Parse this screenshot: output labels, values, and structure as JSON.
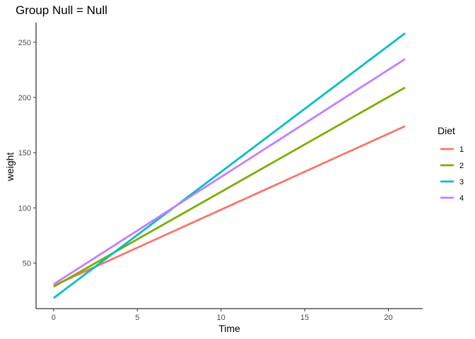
{
  "chart_data": {
    "type": "line",
    "title": "Group Null  = Null",
    "xlabel": "Time",
    "ylabel": "weight",
    "xlim": [
      -1.05,
      22.05
    ],
    "ylim": [
      8.7,
      267.8
    ],
    "x_ticks": [
      0,
      5,
      10,
      15,
      20
    ],
    "y_ticks": [
      50,
      100,
      150,
      200,
      250
    ],
    "grid": false,
    "legend_title": "Diet",
    "legend_position": "right",
    "x": [
      0,
      21
    ],
    "series": [
      {
        "name": "1",
        "color": "#F8766D",
        "values": [
          29.5,
          174.0
        ]
      },
      {
        "name": "2",
        "color": "#7CAE00",
        "values": [
          28.5,
          209.0
        ]
      },
      {
        "name": "3",
        "color": "#00BFC4",
        "values": [
          18.3,
          258.2
        ]
      },
      {
        "name": "4",
        "color": "#C77CFF",
        "values": [
          30.8,
          234.8
        ]
      }
    ]
  }
}
